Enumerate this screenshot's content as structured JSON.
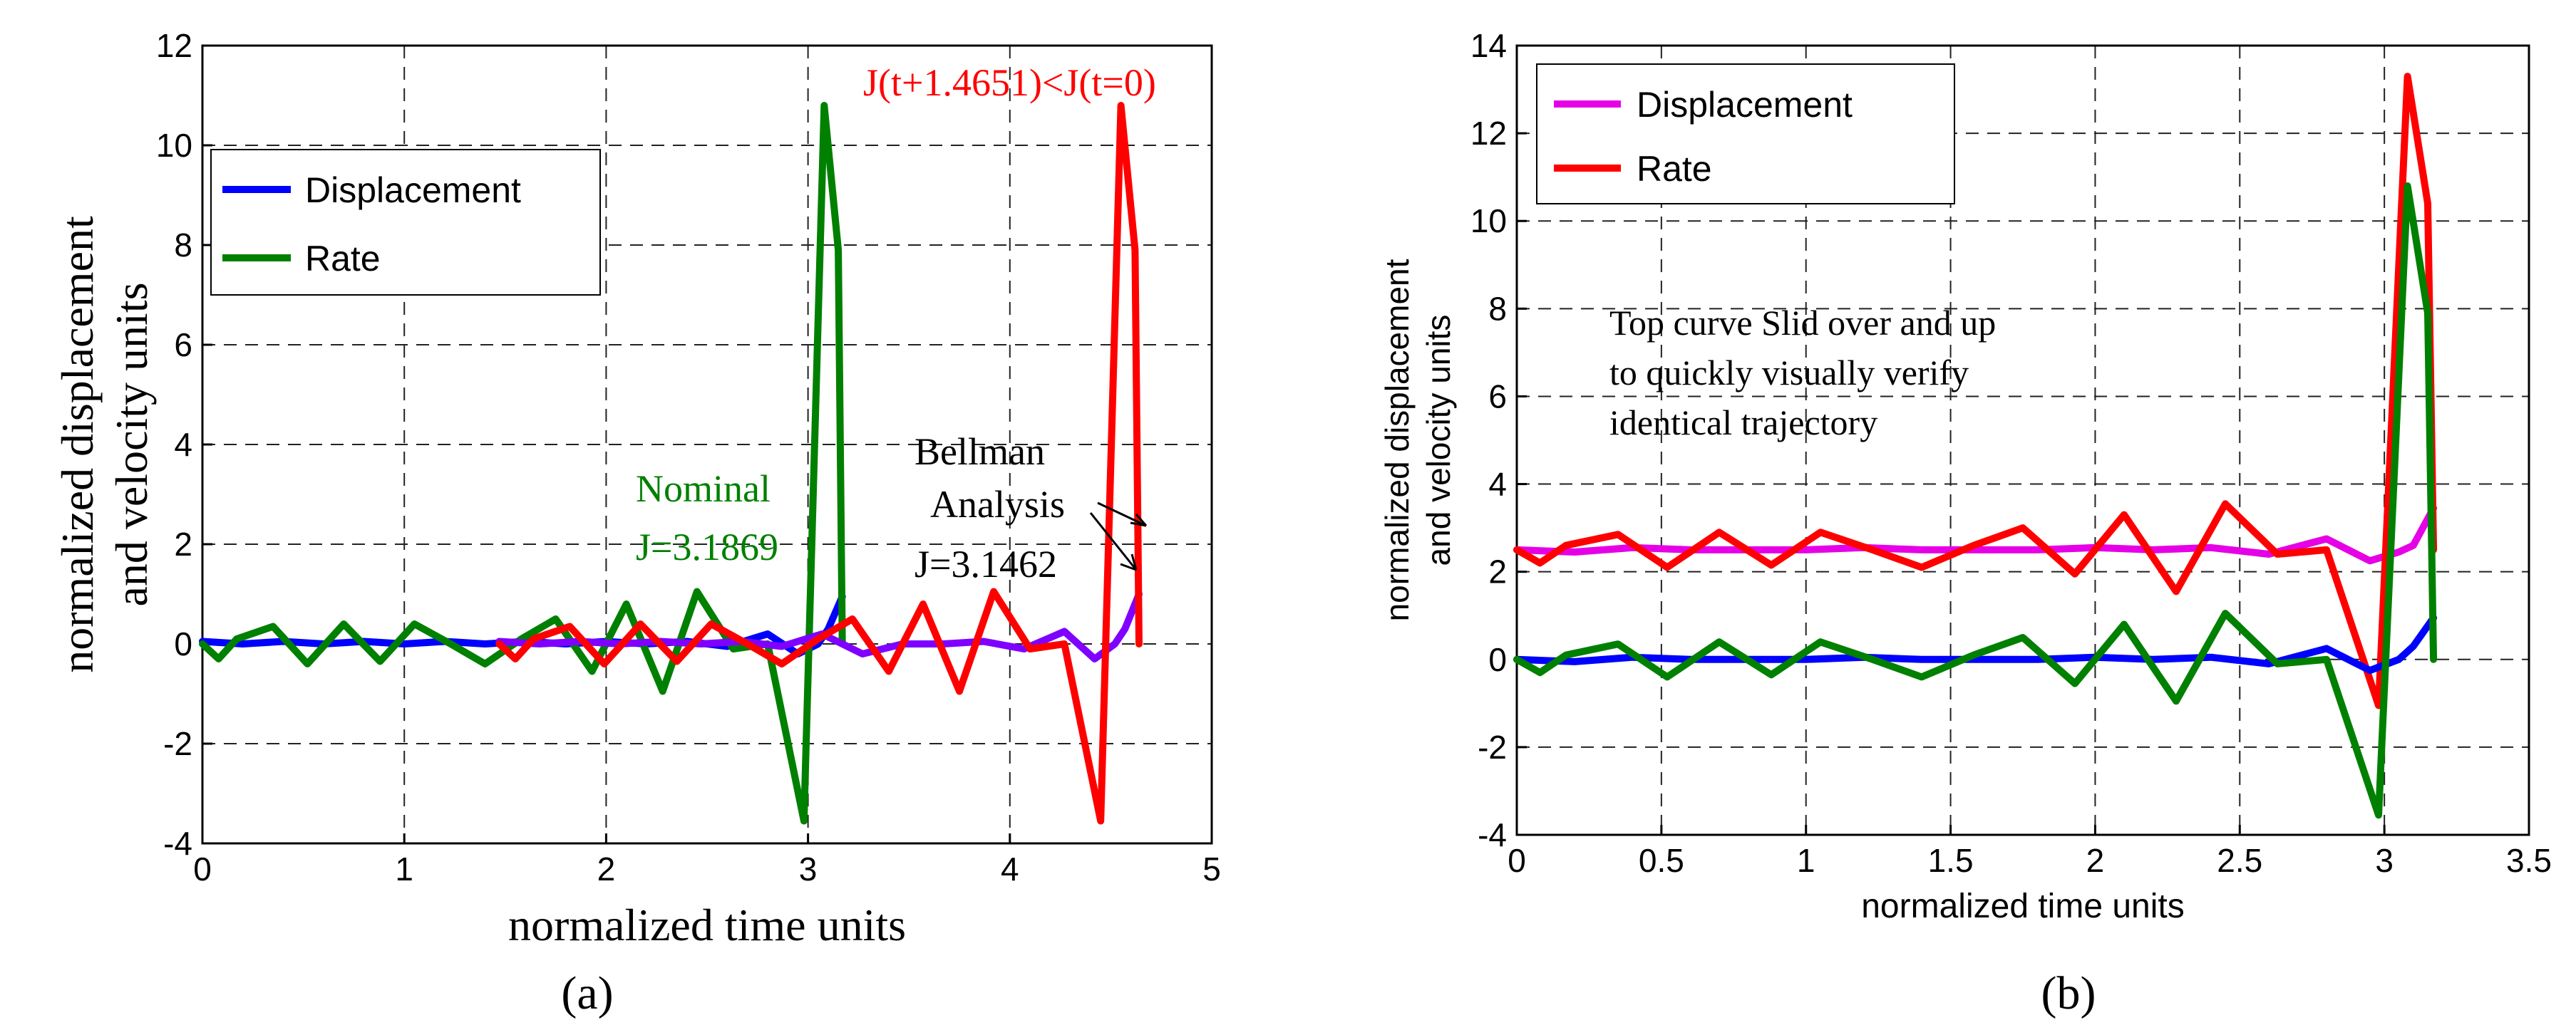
{
  "chart_data": [
    {
      "type": "line",
      "panel_label": "(a)",
      "xlabel": "normalized time units",
      "ylabel_lines": [
        "normalized displacement",
        "and velocity units"
      ],
      "xlim": [
        0,
        5
      ],
      "ylim": [
        -4,
        12
      ],
      "xticks": [
        "0",
        "1",
        "2",
        "3",
        "4",
        "5"
      ],
      "yticks": [
        "-4",
        "-2",
        "0",
        "2",
        "4",
        "6",
        "8",
        "10",
        "12"
      ],
      "grid": true,
      "legend": {
        "position": "upper-left",
        "entries": [
          {
            "label": "Displacement",
            "color": "#0000ff"
          },
          {
            "label": "Rate",
            "color": "#008000"
          }
        ]
      },
      "series": [
        {
          "name": "Displacement (nominal)",
          "color": "#0000ff",
          "in_legend": true,
          "x": [
            0,
            0.2,
            0.4,
            0.6,
            0.8,
            1.0,
            1.2,
            1.4,
            1.6,
            1.8,
            2.0,
            2.2,
            2.4,
            2.6,
            2.8,
            2.95,
            3.05,
            3.1,
            3.17
          ],
          "y": [
            0.05,
            0.0,
            0.05,
            0.0,
            0.05,
            0.0,
            0.05,
            0.0,
            0.05,
            0.0,
            0.05,
            0.0,
            0.05,
            -0.05,
            0.2,
            -0.2,
            0.0,
            0.3,
            0.95
          ]
        },
        {
          "name": "Rate (nominal)",
          "color": "#008000",
          "in_legend": true,
          "x": [
            0,
            0.08,
            0.17,
            0.35,
            0.52,
            0.7,
            0.88,
            1.05,
            1.23,
            1.4,
            1.58,
            1.75,
            1.93,
            2.1,
            2.28,
            2.45,
            2.63,
            2.8,
            2.98,
            3.08,
            3.15,
            3.17
          ],
          "y": [
            0.0,
            -0.3,
            0.1,
            0.35,
            -0.4,
            0.4,
            -0.35,
            0.4,
            0.0,
            -0.4,
            0.1,
            0.5,
            -0.55,
            0.8,
            -0.95,
            1.05,
            -0.1,
            0.0,
            -3.55,
            10.8,
            7.9,
            0.0
          ]
        },
        {
          "name": "Displacement (Bellman)",
          "color": "#8000ff",
          "in_legend": false,
          "x": [
            1.47,
            1.67,
            1.87,
            2.07,
            2.27,
            2.47,
            2.67,
            2.87,
            3.07,
            3.27,
            3.47,
            3.67,
            3.87,
            4.07,
            4.27,
            4.42,
            4.52,
            4.57,
            4.64
          ],
          "y": [
            0.05,
            0.0,
            0.05,
            0.0,
            0.05,
            0.0,
            0.05,
            -0.05,
            0.2,
            -0.2,
            0.0,
            0.0,
            0.05,
            -0.1,
            0.25,
            -0.3,
            0.0,
            0.3,
            1.0
          ]
        },
        {
          "name": "Rate (Bellman)",
          "color": "#ff0000",
          "in_legend": false,
          "x": [
            1.47,
            1.55,
            1.64,
            1.82,
            1.99,
            2.17,
            2.35,
            2.52,
            2.7,
            2.87,
            3.05,
            3.22,
            3.4,
            3.57,
            3.75,
            3.92,
            4.1,
            4.27,
            4.45,
            4.55,
            4.62,
            4.64
          ],
          "y": [
            0.0,
            -0.3,
            0.1,
            0.35,
            -0.4,
            0.4,
            -0.35,
            0.4,
            0.0,
            -0.4,
            0.1,
            0.5,
            -0.55,
            0.8,
            -0.95,
            1.05,
            -0.1,
            0.0,
            -3.55,
            10.8,
            7.9,
            0.0
          ]
        }
      ],
      "annotations": [
        {
          "text": "J(t+1.4651)<J(t=0)",
          "color": "#ff0000"
        },
        {
          "text": "Nominal",
          "color": "#008000"
        },
        {
          "text": "J=3.1869",
          "color": "#008000"
        },
        {
          "text": "Bellman",
          "color": "#000000"
        },
        {
          "text": "Analysis",
          "color": "#000000"
        },
        {
          "text": "J=3.1462",
          "color": "#000000"
        }
      ]
    },
    {
      "type": "line",
      "panel_label": "(b)",
      "xlabel": "normalized time units",
      "ylabel_lines": [
        "normalized displacement",
        "and velocity units"
      ],
      "xlim": [
        0,
        3.5
      ],
      "ylim": [
        -4,
        14
      ],
      "xticks": [
        "0",
        "0.5",
        "1",
        "1.5",
        "2",
        "2.5",
        "3",
        "3.5"
      ],
      "yticks": [
        "-4",
        "-2",
        "0",
        "2",
        "4",
        "6",
        "8",
        "10",
        "12",
        "14"
      ],
      "grid": true,
      "legend": {
        "position": "upper-left",
        "entries": [
          {
            "label": "Displacement",
            "color": "#e600e6"
          },
          {
            "label": "Rate",
            "color": "#ff0000"
          }
        ]
      },
      "series": [
        {
          "name": "Displacement (shifted)",
          "color": "#e600e6",
          "in_legend": true,
          "x": [
            0,
            0.2,
            0.4,
            0.6,
            0.8,
            1.0,
            1.2,
            1.4,
            1.6,
            1.8,
            2.0,
            2.2,
            2.4,
            2.6,
            2.8,
            2.95,
            3.05,
            3.1,
            3.17
          ],
          "y": [
            2.5,
            2.45,
            2.55,
            2.5,
            2.5,
            2.5,
            2.55,
            2.5,
            2.5,
            2.5,
            2.55,
            2.5,
            2.55,
            2.4,
            2.75,
            2.25,
            2.45,
            2.6,
            3.45
          ]
        },
        {
          "name": "Rate (shifted)",
          "color": "#ff0000",
          "in_legend": true,
          "x": [
            0,
            0.08,
            0.17,
            0.35,
            0.52,
            0.7,
            0.88,
            1.05,
            1.23,
            1.4,
            1.58,
            1.75,
            1.93,
            2.1,
            2.28,
            2.45,
            2.63,
            2.8,
            2.98,
            3.08,
            3.15,
            3.17
          ],
          "y": [
            2.5,
            2.2,
            2.6,
            2.85,
            2.1,
            2.9,
            2.15,
            2.9,
            2.5,
            2.1,
            2.6,
            3.0,
            1.95,
            3.3,
            1.55,
            3.55,
            2.4,
            2.5,
            -1.05,
            13.3,
            10.4,
            2.5
          ]
        },
        {
          "name": "Displacement (nominal)",
          "color": "#0000ff",
          "in_legend": false,
          "x": [
            0,
            0.2,
            0.4,
            0.6,
            0.8,
            1.0,
            1.2,
            1.4,
            1.6,
            1.8,
            2.0,
            2.2,
            2.4,
            2.6,
            2.8,
            2.95,
            3.05,
            3.1,
            3.17
          ],
          "y": [
            0.0,
            -0.05,
            0.05,
            0.0,
            0.0,
            0.0,
            0.05,
            0.0,
            0.0,
            0.0,
            0.05,
            0.0,
            0.05,
            -0.1,
            0.25,
            -0.25,
            0.0,
            0.3,
            0.95
          ]
        },
        {
          "name": "Rate (nominal)",
          "color": "#008000",
          "in_legend": false,
          "x": [
            0,
            0.08,
            0.17,
            0.35,
            0.52,
            0.7,
            0.88,
            1.05,
            1.23,
            1.4,
            1.58,
            1.75,
            1.93,
            2.1,
            2.28,
            2.45,
            2.63,
            2.8,
            2.98,
            3.08,
            3.15,
            3.17
          ],
          "y": [
            0.0,
            -0.3,
            0.1,
            0.35,
            -0.4,
            0.4,
            -0.35,
            0.4,
            0.0,
            -0.4,
            0.1,
            0.5,
            -0.55,
            0.8,
            -0.95,
            1.05,
            -0.1,
            0.0,
            -3.55,
            10.8,
            7.9,
            0.0
          ]
        }
      ],
      "annotations": [
        {
          "text": "Top curve Slid over and up",
          "color": "#000000"
        },
        {
          "text": "to quickly visually verify",
          "color": "#000000"
        },
        {
          "text": "identical trajectory",
          "color": "#000000"
        }
      ]
    }
  ]
}
